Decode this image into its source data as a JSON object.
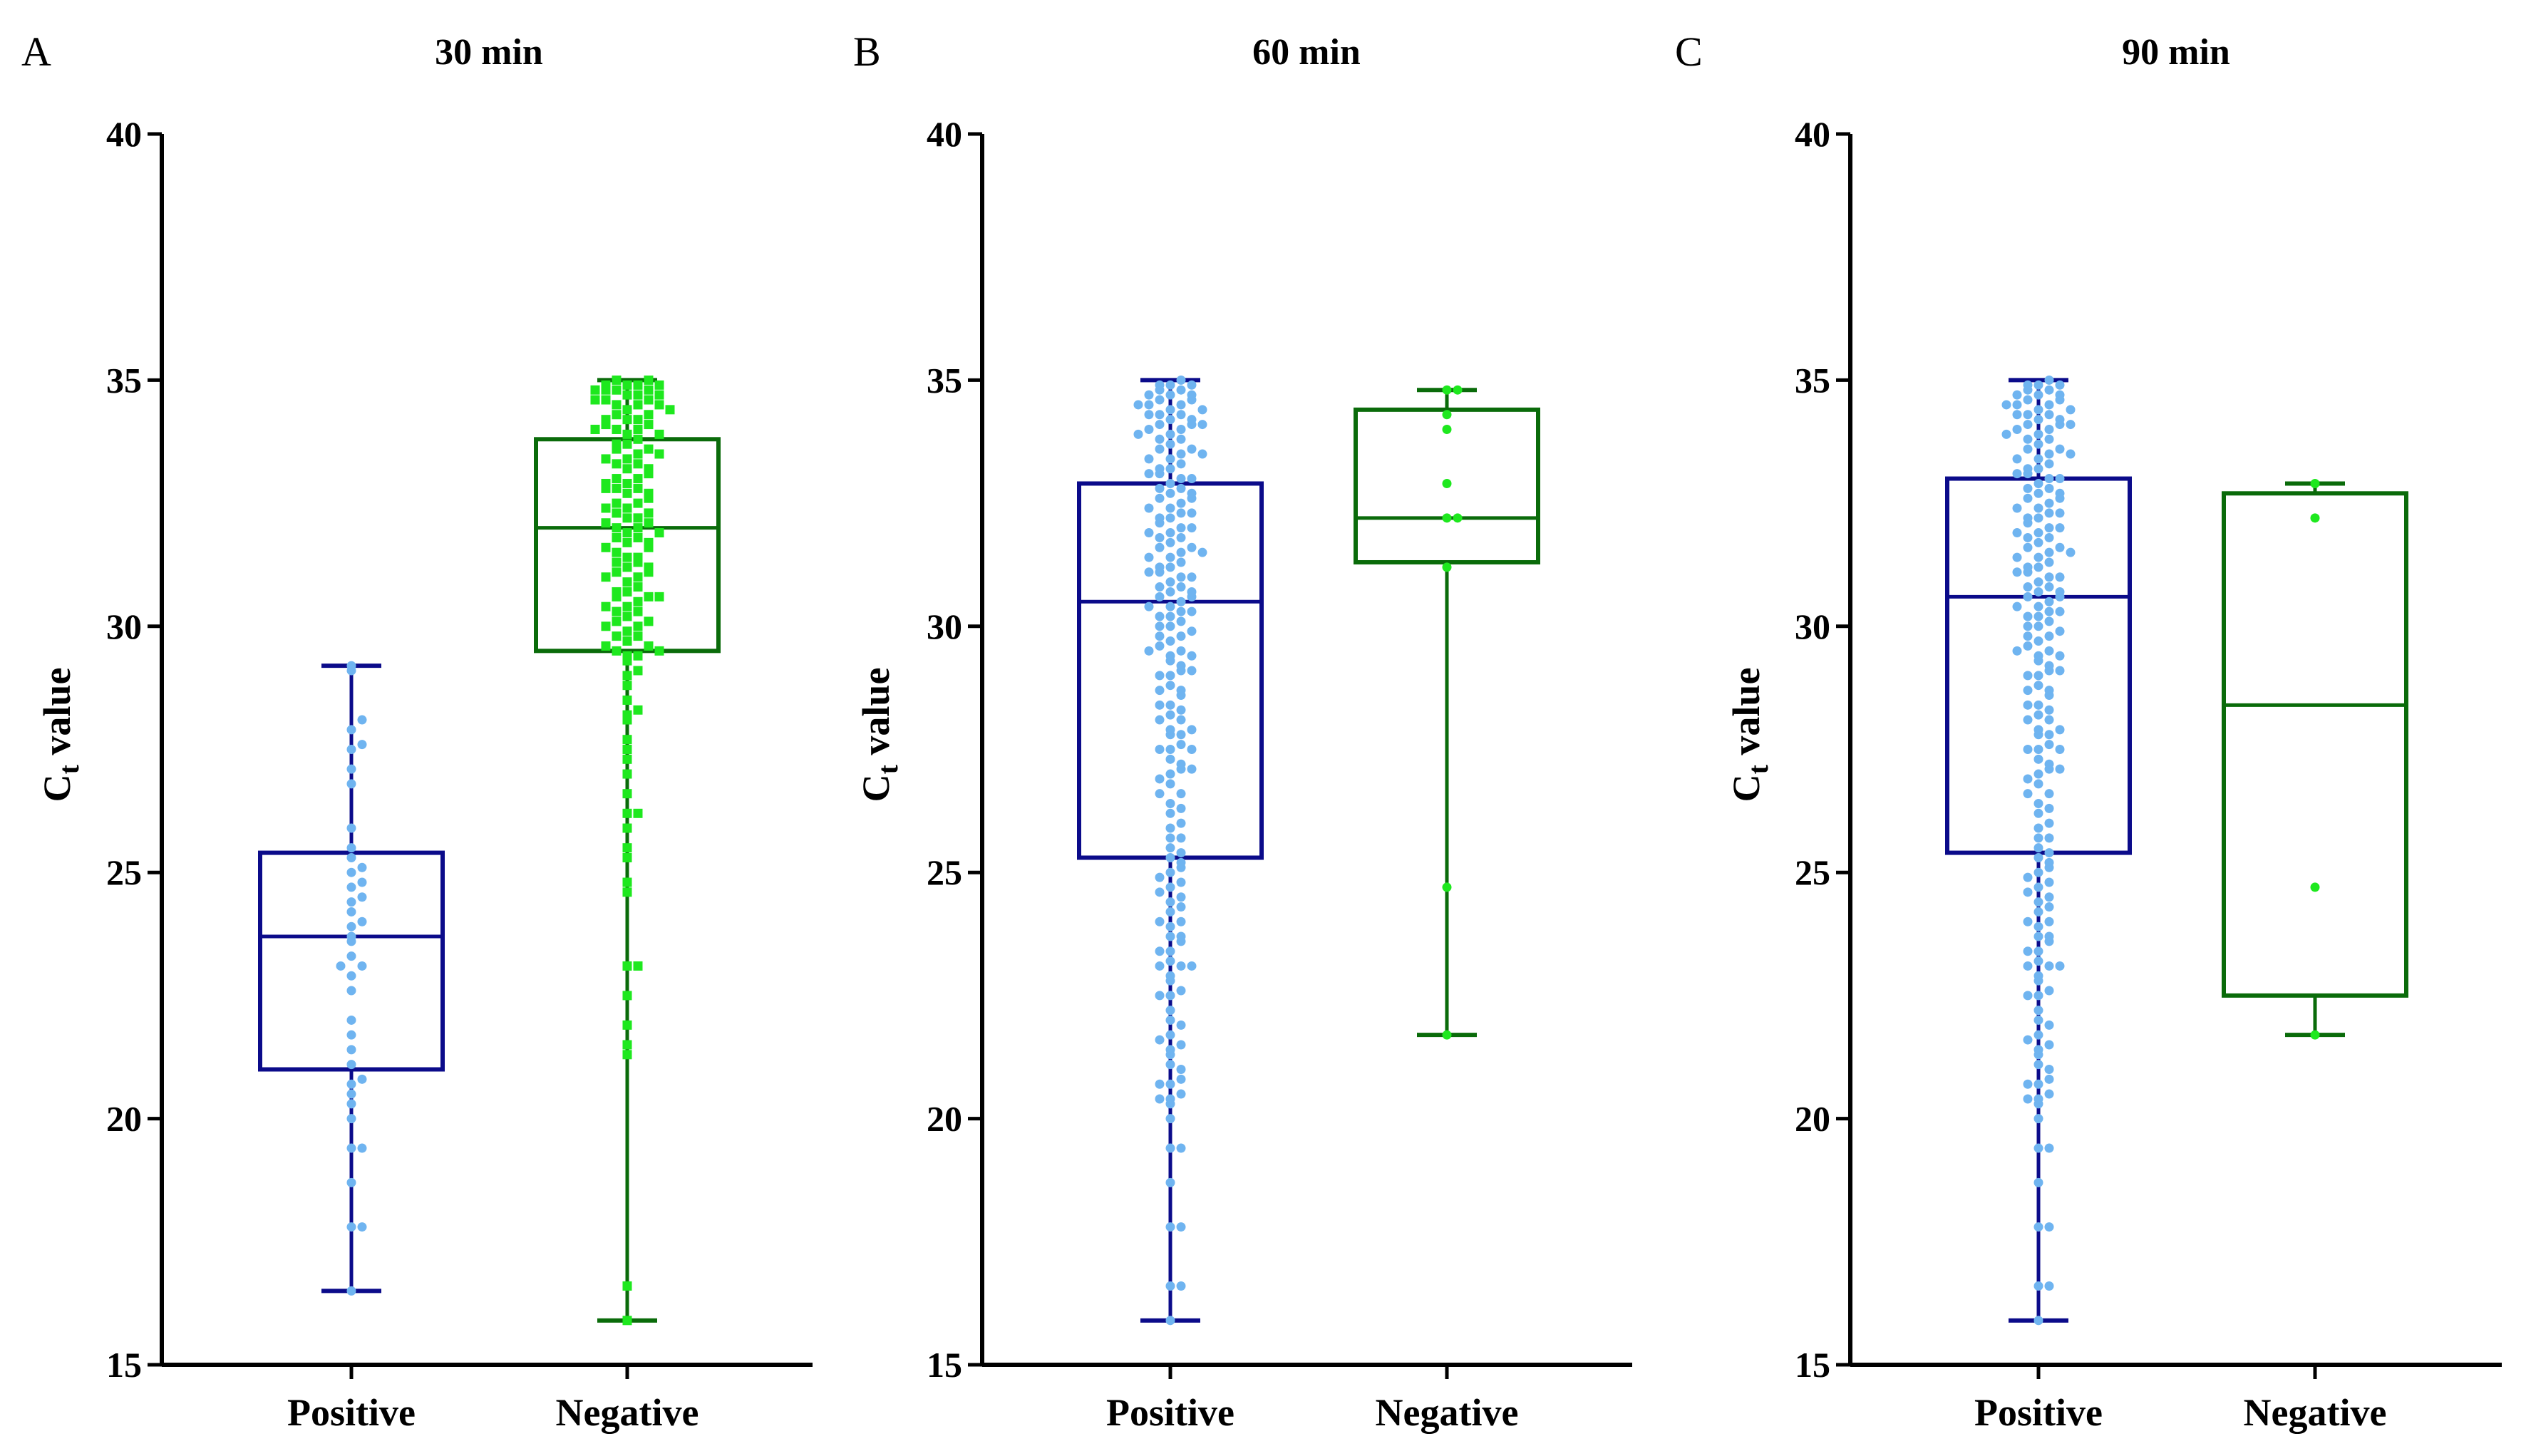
{
  "colors": {
    "positive_box": "#0b0b8a",
    "negative_box": "#0a6b0a",
    "positive_points": "#6fb4f0",
    "negative_points": "#1ee81e",
    "axis": "#000000"
  },
  "chart_data": [
    {
      "type": "box",
      "panel_label": "A",
      "title": "30 min",
      "ylabel_main": "C",
      "ylabel_sub": "t",
      "ylabel_rest": " value",
      "ylim": [
        15,
        40
      ],
      "yticks": [
        15,
        20,
        25,
        30,
        35,
        40
      ],
      "categories": [
        "Positive",
        "Negative"
      ],
      "series": [
        {
          "name": "Positive",
          "marker": "circle",
          "min": 16.5,
          "q1": 21.0,
          "median": 23.7,
          "q3": 25.4,
          "max": 29.2,
          "points": [
            16.5,
            17.8,
            17.8,
            18.7,
            19.4,
            19.4,
            20.0,
            20.3,
            20.5,
            20.7,
            20.8,
            21.1,
            21.4,
            21.7,
            22.0,
            22.6,
            22.9,
            23.1,
            23.1,
            23.3,
            23.6,
            23.7,
            23.9,
            24.0,
            24.2,
            24.4,
            24.5,
            24.7,
            24.8,
            25.0,
            25.1,
            25.3,
            25.5,
            25.9,
            26.8,
            27.1,
            27.5,
            27.6,
            27.9,
            28.1,
            29.1,
            29.2
          ]
        },
        {
          "name": "Negative",
          "marker": "square",
          "min": 15.9,
          "q1": 29.5,
          "median": 32.0,
          "q3": 33.8,
          "max": 35.0,
          "points": [
            15.9,
            16.6,
            21.3,
            21.5,
            21.9,
            22.5,
            23.1,
            23.1,
            24.6,
            24.8,
            25.3,
            25.5,
            25.9,
            26.2,
            26.2,
            26.6,
            27.0,
            27.3,
            27.5,
            27.7,
            28.1,
            28.2,
            28.3,
            28.5,
            28.8,
            29.0,
            29.1,
            29.3,
            29.4,
            29.4,
            29.5,
            29.6,
            29.7,
            29.8,
            29.9,
            30.0,
            30.1,
            30.2,
            30.3,
            30.3,
            30.4,
            30.5,
            30.6,
            30.6,
            30.7,
            30.8,
            30.9,
            31.0,
            31.1,
            31.1,
            31.2,
            31.3,
            31.4,
            31.4,
            31.5,
            31.6,
            31.7,
            31.8,
            31.8,
            31.9,
            32.0,
            32.0,
            32.1,
            32.2,
            32.2,
            32.3,
            32.4,
            32.5,
            32.5,
            32.6,
            32.7,
            32.8,
            32.8,
            32.9,
            33.0,
            33.0,
            33.1,
            33.2,
            33.3,
            33.3,
            33.4,
            33.5,
            33.6,
            33.7,
            33.8,
            33.9,
            34.0,
            34.0,
            34.1,
            34.2,
            34.2,
            34.3,
            34.4,
            34.5,
            34.5,
            34.6,
            34.7,
            34.7,
            34.8,
            34.8,
            34.9,
            34.9,
            35.0,
            35.0,
            34.9,
            34.8,
            34.7,
            34.6,
            34.5,
            34.3,
            34.1,
            33.9,
            33.6,
            33.4,
            33.2,
            32.9,
            32.7,
            32.4,
            32.1,
            31.9,
            31.6,
            31.3,
            31.0,
            30.7,
            30.4,
            30.1,
            29.8,
            29.6,
            34.9,
            34.8,
            34.6,
            34.4,
            34.2,
            34.0,
            33.7,
            33.5,
            32.8,
            32.3,
            31.7,
            31.2,
            30.6,
            30.0,
            29.5
          ]
        }
      ]
    },
    {
      "type": "box",
      "panel_label": "B",
      "title": "60 min",
      "ylabel_main": "C",
      "ylabel_sub": "t",
      "ylabel_rest": " value",
      "ylim": [
        15,
        40
      ],
      "yticks": [
        15,
        20,
        25,
        30,
        35,
        40
      ],
      "categories": [
        "Positive",
        "Negative"
      ],
      "series": [
        {
          "name": "Positive",
          "marker": "circle",
          "min": 15.9,
          "q1": 25.3,
          "median": 30.5,
          "q3": 32.9,
          "max": 35.0,
          "points": [
            15.9,
            16.6,
            16.6,
            17.8,
            17.8,
            18.7,
            19.4,
            19.4,
            20.0,
            20.3,
            20.4,
            20.5,
            20.7,
            20.8,
            21.1,
            21.4,
            21.5,
            21.7,
            22.0,
            22.5,
            22.6,
            22.9,
            23.1,
            23.1,
            23.2,
            23.4,
            23.6,
            23.7,
            23.9,
            24.0,
            24.2,
            24.4,
            24.5,
            24.7,
            24.8,
            25.0,
            25.1,
            25.3,
            25.5,
            25.7,
            25.9,
            26.2,
            26.4,
            26.6,
            26.8,
            27.0,
            27.1,
            27.3,
            27.5,
            27.6,
            27.8,
            27.9,
            28.1,
            28.2,
            28.4,
            28.6,
            28.8,
            29.0,
            29.1,
            29.3,
            29.4,
            29.5,
            29.7,
            29.8,
            30.0,
            30.1,
            30.2,
            30.3,
            30.4,
            30.5,
            30.6,
            30.7,
            30.8,
            30.9,
            31.0,
            31.1,
            31.2,
            31.3,
            31.4,
            31.5,
            31.6,
            31.7,
            31.8,
            31.9,
            32.0,
            32.1,
            32.2,
            32.3,
            32.4,
            32.5,
            32.6,
            32.7,
            32.8,
            32.9,
            33.0,
            33.1,
            33.2,
            33.3,
            33.4,
            33.5,
            33.6,
            33.7,
            33.8,
            33.9,
            34.0,
            34.1,
            34.2,
            34.3,
            34.4,
            34.5,
            34.6,
            34.7,
            34.8,
            34.9,
            35.0,
            34.9,
            34.8,
            34.7,
            34.6,
            34.5,
            34.4,
            34.3,
            34.2,
            34.1,
            34.0,
            33.8,
            33.6,
            33.4,
            33.2,
            33.0,
            32.8,
            32.6,
            32.4,
            32.2,
            32.0,
            31.8,
            31.6,
            31.4,
            31.2,
            31.0,
            30.8,
            30.6,
            30.4,
            30.2,
            30.0,
            29.8,
            29.6,
            29.4,
            29.2,
            29.0,
            28.7,
            28.4,
            28.1,
            27.8,
            27.5,
            27.2,
            26.9,
            26.6,
            26.3,
            26.0,
            25.7,
            25.4,
            25.2,
            24.9,
            24.6,
            24.3,
            24.0,
            23.7,
            23.4,
            23.1,
            22.8,
            22.5,
            22.2,
            21.9,
            21.6,
            21.3,
            21.0,
            20.7,
            20.4,
            34.9,
            34.7,
            34.5,
            34.3,
            34.1,
            33.9,
            33.5,
            33.1,
            32.7,
            32.3,
            31.9,
            31.5,
            31.1,
            30.7,
            30.3,
            29.9,
            29.5,
            29.1,
            28.7,
            28.3,
            27.9,
            27.5,
            27.1
          ]
        },
        {
          "name": "Negative",
          "marker": "circle",
          "min": 21.7,
          "q1": 31.3,
          "median": 32.2,
          "q3": 34.4,
          "max": 34.8,
          "points": [
            21.7,
            24.7,
            31.2,
            32.2,
            32.2,
            32.9,
            34.0,
            34.3,
            34.8,
            34.8
          ]
        }
      ]
    },
    {
      "type": "box",
      "panel_label": "C",
      "title": "90 min",
      "ylabel_main": "C",
      "ylabel_sub": "t",
      "ylabel_rest": " value",
      "ylim": [
        15,
        40
      ],
      "yticks": [
        15,
        20,
        25,
        30,
        35,
        40
      ],
      "categories": [
        "Positive",
        "Negative"
      ],
      "series": [
        {
          "name": "Positive",
          "marker": "circle",
          "min": 15.9,
          "q1": 25.4,
          "median": 30.6,
          "q3": 33.0,
          "max": 35.0,
          "points": [
            15.9,
            16.6,
            16.6,
            17.8,
            17.8,
            18.7,
            19.4,
            19.4,
            20.0,
            20.3,
            20.4,
            20.5,
            20.7,
            20.8,
            21.1,
            21.4,
            21.5,
            21.7,
            22.0,
            22.5,
            22.6,
            22.9,
            23.1,
            23.1,
            23.2,
            23.4,
            23.6,
            23.7,
            23.9,
            24.0,
            24.2,
            24.4,
            24.5,
            24.7,
            24.8,
            25.0,
            25.1,
            25.3,
            25.5,
            25.7,
            25.9,
            26.2,
            26.4,
            26.6,
            26.8,
            27.0,
            27.1,
            27.3,
            27.5,
            27.6,
            27.8,
            27.9,
            28.1,
            28.2,
            28.4,
            28.6,
            28.8,
            29.0,
            29.1,
            29.3,
            29.4,
            29.5,
            29.7,
            29.8,
            30.0,
            30.1,
            30.2,
            30.3,
            30.4,
            30.5,
            30.6,
            30.7,
            30.8,
            30.9,
            31.0,
            31.1,
            31.2,
            31.3,
            31.4,
            31.5,
            31.6,
            31.7,
            31.8,
            31.9,
            32.0,
            32.1,
            32.2,
            32.3,
            32.4,
            32.5,
            32.6,
            32.7,
            32.8,
            32.9,
            33.0,
            33.1,
            33.2,
            33.3,
            33.4,
            33.5,
            33.6,
            33.7,
            33.8,
            33.9,
            34.0,
            34.1,
            34.2,
            34.3,
            34.4,
            34.5,
            34.6,
            34.7,
            34.8,
            34.9,
            35.0,
            34.9,
            34.8,
            34.7,
            34.6,
            34.5,
            34.4,
            34.3,
            34.2,
            34.1,
            34.0,
            33.8,
            33.6,
            33.4,
            33.2,
            33.0,
            32.8,
            32.6,
            32.4,
            32.2,
            32.0,
            31.8,
            31.6,
            31.4,
            31.2,
            31.0,
            30.8,
            30.6,
            30.4,
            30.2,
            30.0,
            29.8,
            29.6,
            29.4,
            29.2,
            29.0,
            28.7,
            28.4,
            28.1,
            27.8,
            27.5,
            27.2,
            26.9,
            26.6,
            26.3,
            26.0,
            25.7,
            25.4,
            25.2,
            24.9,
            24.6,
            24.3,
            24.0,
            23.7,
            23.4,
            23.1,
            22.8,
            22.5,
            22.2,
            21.9,
            21.6,
            21.3,
            21.0,
            20.7,
            20.4,
            34.9,
            34.7,
            34.5,
            34.3,
            34.1,
            33.9,
            33.5,
            33.1,
            32.7,
            32.3,
            31.9,
            31.5,
            31.1,
            30.7,
            30.3,
            29.9,
            29.5,
            29.1,
            28.7,
            28.3,
            27.9,
            27.5,
            27.1
          ]
        },
        {
          "name": "Negative",
          "marker": "circle",
          "min": 21.7,
          "q1": 22.5,
          "median": 28.4,
          "q3": 32.7,
          "max": 32.9,
          "points": [
            21.7,
            24.7,
            32.2,
            32.9
          ]
        }
      ]
    }
  ]
}
